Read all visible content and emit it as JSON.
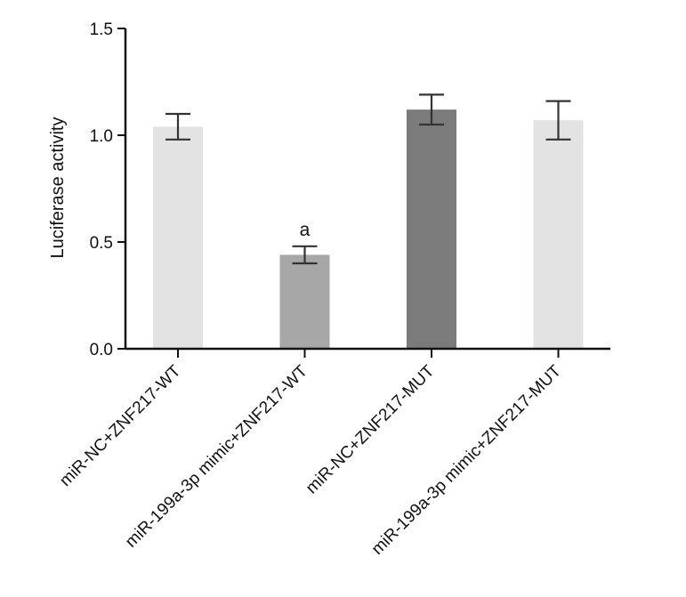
{
  "chart_data": {
    "type": "bar",
    "categories": [
      "miR-NC+ZNF217-WT",
      "miR-199a-3p mimic+ZNF217-WT",
      "miR-NC+ZNF217-MUT",
      "miR-199a-3p mimic+ZNF217-MUT"
    ],
    "values": [
      1.04,
      0.44,
      1.12,
      1.07
    ],
    "errors": [
      0.06,
      0.04,
      0.07,
      0.09
    ],
    "colors": [
      "#e3e3e3",
      "#a7a7a7",
      "#7b7b7b",
      "#e3e3e3"
    ],
    "annotations": [
      "",
      "a",
      "",
      ""
    ],
    "ylabel": "Luciferase activity",
    "xlabel": "",
    "ylim": [
      0,
      1.5
    ],
    "yticks": [
      0,
      0.5,
      1.0,
      1.5
    ],
    "ytick_labels": [
      "0.0",
      "0.5",
      "1.0",
      "1.5"
    ],
    "grid": false
  }
}
